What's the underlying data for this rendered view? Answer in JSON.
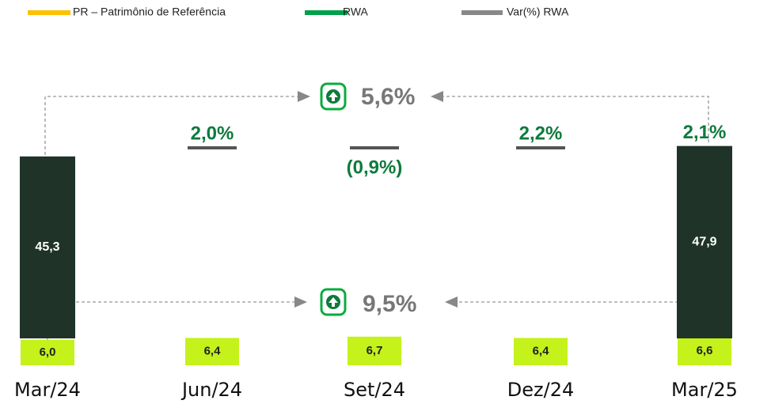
{
  "chart_data": {
    "type": "bar",
    "categories": [
      "Mar/24",
      "Jun/24",
      "Set/24",
      "Dez/24",
      "Mar/25"
    ],
    "series": [
      {
        "name": "PR – Patrimônio de Referência",
        "color": "#c4f21a",
        "legend_color": "#ffc000",
        "values": [
          6.0,
          6.4,
          6.7,
          6.4,
          6.6
        ],
        "value_labels": [
          "6,0",
          "6,4",
          "6,7",
          "6,4",
          "6,6"
        ]
      },
      {
        "name": "RWA",
        "color": "#1f3329",
        "legend_color": "#00a04b",
        "values": [
          45.3,
          null,
          null,
          null,
          47.9
        ],
        "value_labels": [
          "45,3",
          null,
          null,
          null,
          "47,9"
        ]
      },
      {
        "name": "Var(%) RWA",
        "color": "#555555",
        "legend_color": "#888888",
        "label_color": "#0e7a3c",
        "values": [
          null,
          2.0,
          -0.9,
          2.2,
          2.1
        ],
        "value_labels": [
          null,
          "2,0%",
          "(0,9%)",
          "2,2%",
          "2,1%"
        ]
      }
    ],
    "annotations": [
      {
        "label": "5,6%"
      },
      {
        "label": "9,5%"
      }
    ]
  }
}
